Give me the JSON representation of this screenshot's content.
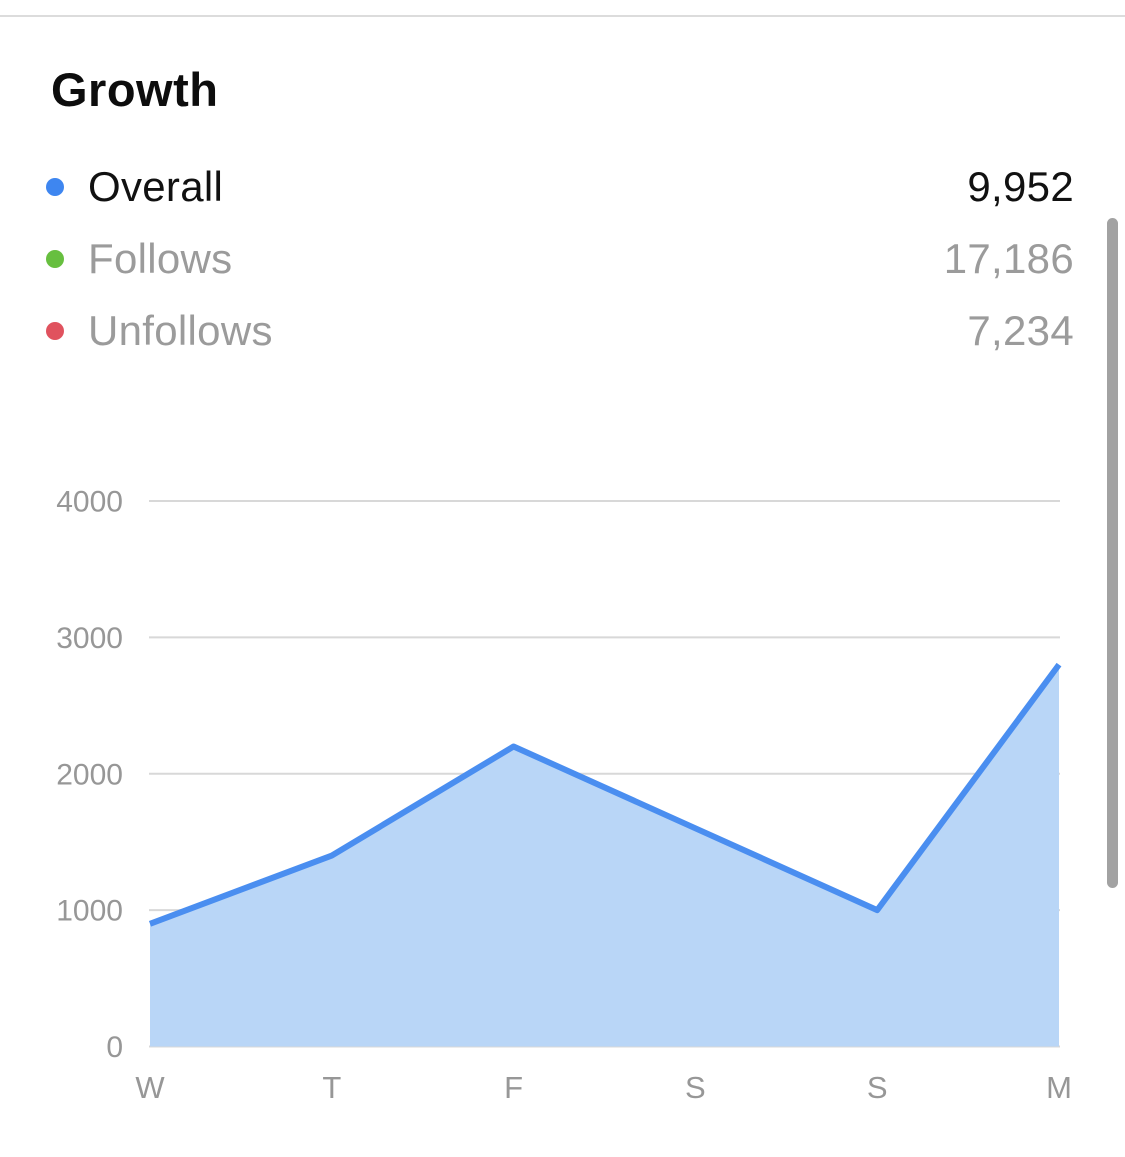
{
  "header": {
    "title": "Growth"
  },
  "legend": {
    "items": [
      {
        "id": "overall",
        "label": "Overall",
        "value": "9,952",
        "dot_color": "#3e86f0",
        "muted": false
      },
      {
        "id": "follows",
        "label": "Follows",
        "value": "17,186",
        "dot_color": "#67bf3f",
        "muted": true
      },
      {
        "id": "unfollows",
        "label": "Unfollows",
        "value": "7,234",
        "dot_color": "#e0525e",
        "muted": true
      }
    ]
  },
  "chart_data": {
    "type": "area",
    "title": "Growth",
    "categories": [
      "W",
      "T",
      "F",
      "S",
      "S",
      "M"
    ],
    "series": [
      {
        "name": "Overall",
        "values": [
          900,
          1400,
          2200,
          1600,
          1000,
          2800
        ]
      }
    ],
    "ylim": [
      0,
      4000
    ],
    "yticks": [
      0,
      1000,
      2000,
      3000,
      4000
    ],
    "grid": true,
    "legend_position": "top",
    "line_color": "#4a8ef0",
    "fill_color": "#b9d6f7",
    "gridline_color": "#d8d8d8",
    "axis_text_color": "#979797"
  }
}
